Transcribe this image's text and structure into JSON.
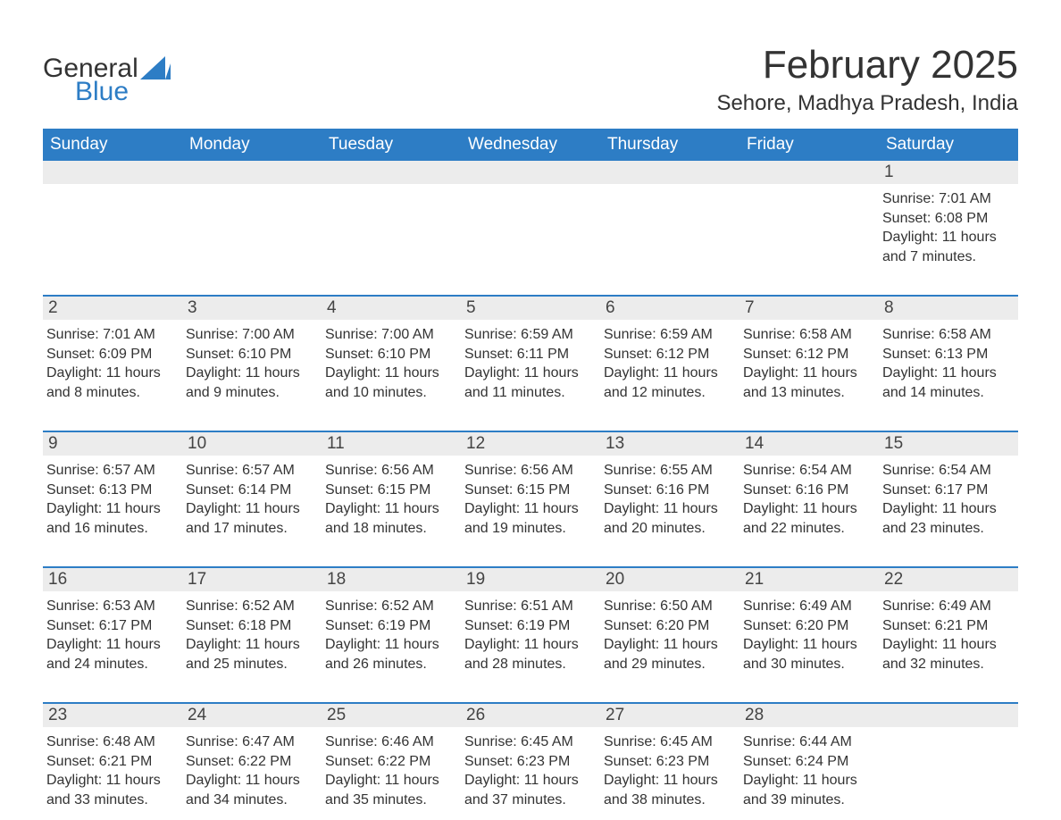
{
  "brand": {
    "general": "General",
    "blue": "Blue"
  },
  "title": "February 2025",
  "location": "Sehore, Madhya Pradesh, India",
  "colors": {
    "header_bg": "#2d7dc5",
    "header_text": "#ffffff",
    "daynum_bg": "#ececec",
    "text": "#333333",
    "row_border": "#2d7dc5",
    "brand_blue": "#2d7dc5",
    "page_bg": "#ffffff"
  },
  "typography": {
    "title_fontsize": 44,
    "location_fontsize": 24,
    "weekday_fontsize": 19,
    "daynum_fontsize": 19,
    "cell_fontsize": 16
  },
  "weekdays": [
    "Sunday",
    "Monday",
    "Tuesday",
    "Wednesday",
    "Thursday",
    "Friday",
    "Saturday"
  ],
  "weeks": [
    [
      null,
      null,
      null,
      null,
      null,
      null,
      {
        "n": "1",
        "sunrise": "7:01 AM",
        "sunset": "6:08 PM",
        "daylight": "11 hours and 7 minutes."
      }
    ],
    [
      {
        "n": "2",
        "sunrise": "7:01 AM",
        "sunset": "6:09 PM",
        "daylight": "11 hours and 8 minutes."
      },
      {
        "n": "3",
        "sunrise": "7:00 AM",
        "sunset": "6:10 PM",
        "daylight": "11 hours and 9 minutes."
      },
      {
        "n": "4",
        "sunrise": "7:00 AM",
        "sunset": "6:10 PM",
        "daylight": "11 hours and 10 minutes."
      },
      {
        "n": "5",
        "sunrise": "6:59 AM",
        "sunset": "6:11 PM",
        "daylight": "11 hours and 11 minutes."
      },
      {
        "n": "6",
        "sunrise": "6:59 AM",
        "sunset": "6:12 PM",
        "daylight": "11 hours and 12 minutes."
      },
      {
        "n": "7",
        "sunrise": "6:58 AM",
        "sunset": "6:12 PM",
        "daylight": "11 hours and 13 minutes."
      },
      {
        "n": "8",
        "sunrise": "6:58 AM",
        "sunset": "6:13 PM",
        "daylight": "11 hours and 14 minutes."
      }
    ],
    [
      {
        "n": "9",
        "sunrise": "6:57 AM",
        "sunset": "6:13 PM",
        "daylight": "11 hours and 16 minutes."
      },
      {
        "n": "10",
        "sunrise": "6:57 AM",
        "sunset": "6:14 PM",
        "daylight": "11 hours and 17 minutes."
      },
      {
        "n": "11",
        "sunrise": "6:56 AM",
        "sunset": "6:15 PM",
        "daylight": "11 hours and 18 minutes."
      },
      {
        "n": "12",
        "sunrise": "6:56 AM",
        "sunset": "6:15 PM",
        "daylight": "11 hours and 19 minutes."
      },
      {
        "n": "13",
        "sunrise": "6:55 AM",
        "sunset": "6:16 PM",
        "daylight": "11 hours and 20 minutes."
      },
      {
        "n": "14",
        "sunrise": "6:54 AM",
        "sunset": "6:16 PM",
        "daylight": "11 hours and 22 minutes."
      },
      {
        "n": "15",
        "sunrise": "6:54 AM",
        "sunset": "6:17 PM",
        "daylight": "11 hours and 23 minutes."
      }
    ],
    [
      {
        "n": "16",
        "sunrise": "6:53 AM",
        "sunset": "6:17 PM",
        "daylight": "11 hours and 24 minutes."
      },
      {
        "n": "17",
        "sunrise": "6:52 AM",
        "sunset": "6:18 PM",
        "daylight": "11 hours and 25 minutes."
      },
      {
        "n": "18",
        "sunrise": "6:52 AM",
        "sunset": "6:19 PM",
        "daylight": "11 hours and 26 minutes."
      },
      {
        "n": "19",
        "sunrise": "6:51 AM",
        "sunset": "6:19 PM",
        "daylight": "11 hours and 28 minutes."
      },
      {
        "n": "20",
        "sunrise": "6:50 AM",
        "sunset": "6:20 PM",
        "daylight": "11 hours and 29 minutes."
      },
      {
        "n": "21",
        "sunrise": "6:49 AM",
        "sunset": "6:20 PM",
        "daylight": "11 hours and 30 minutes."
      },
      {
        "n": "22",
        "sunrise": "6:49 AM",
        "sunset": "6:21 PM",
        "daylight": "11 hours and 32 minutes."
      }
    ],
    [
      {
        "n": "23",
        "sunrise": "6:48 AM",
        "sunset": "6:21 PM",
        "daylight": "11 hours and 33 minutes."
      },
      {
        "n": "24",
        "sunrise": "6:47 AM",
        "sunset": "6:22 PM",
        "daylight": "11 hours and 34 minutes."
      },
      {
        "n": "25",
        "sunrise": "6:46 AM",
        "sunset": "6:22 PM",
        "daylight": "11 hours and 35 minutes."
      },
      {
        "n": "26",
        "sunrise": "6:45 AM",
        "sunset": "6:23 PM",
        "daylight": "11 hours and 37 minutes."
      },
      {
        "n": "27",
        "sunrise": "6:45 AM",
        "sunset": "6:23 PM",
        "daylight": "11 hours and 38 minutes."
      },
      {
        "n": "28",
        "sunrise": "6:44 AM",
        "sunset": "6:24 PM",
        "daylight": "11 hours and 39 minutes."
      },
      null
    ]
  ],
  "labels": {
    "sunrise_prefix": "Sunrise: ",
    "sunset_prefix": "Sunset: ",
    "daylight_prefix": "Daylight: "
  }
}
